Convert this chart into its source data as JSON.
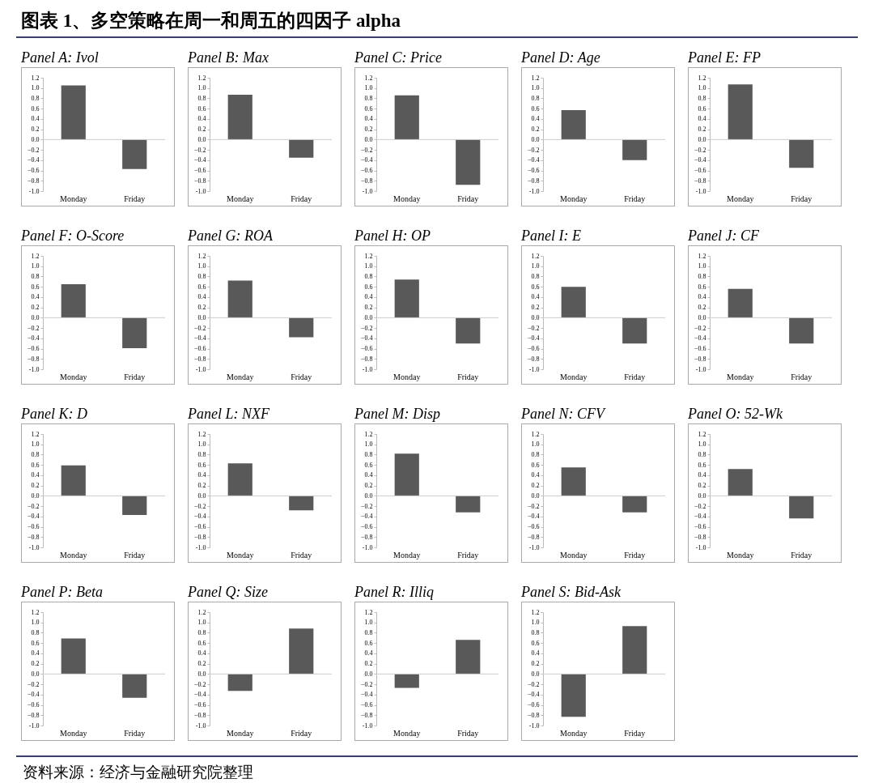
{
  "chart_data": [
    {
      "type": "other",
      "title": "图表 1、多空策略在周一和周五的四因子 alpha"
    },
    {
      "type": "bar",
      "title": "Panel A: Ivol",
      "categories": [
        "Monday",
        "Friday"
      ],
      "values": [
        1.05,
        -0.57
      ],
      "color": "#595959",
      "ylim": [
        -1,
        1.2
      ],
      "yticks": [
        1.2,
        {
          "value": 1,
          "label": "1.0"
        },
        0.8,
        0.6,
        0.4,
        0.2,
        {
          "value": 0,
          "label": "0.0"
        },
        -0.2,
        -0.4,
        -0.6,
        -0.8,
        {
          "value": -1,
          "label": "-1.0"
        }
      ]
    },
    {
      "type": "bar",
      "title": "Panel B: Max",
      "categories": [
        "Monday",
        "Friday"
      ],
      "values": [
        0.87,
        -0.35
      ],
      "color": "#595959",
      "ylim": [
        -1,
        1.2
      ],
      "yticks": [
        1.2,
        {
          "value": 1,
          "label": "1.0"
        },
        0.8,
        0.6,
        0.4,
        0.2,
        {
          "value": 0,
          "label": "0.0"
        },
        -0.2,
        -0.4,
        -0.6,
        -0.8,
        {
          "value": -1,
          "label": "-1.0"
        }
      ]
    },
    {
      "type": "bar",
      "title": "Panel C: Price",
      "categories": [
        "Monday",
        "Friday"
      ],
      "values": [
        0.86,
        -0.88
      ],
      "color": "#595959",
      "ylim": [
        -1,
        1.2
      ],
      "yticks": [
        1.2,
        {
          "value": 1,
          "label": "1.0"
        },
        0.8,
        0.6,
        0.4,
        0.2,
        {
          "value": 0,
          "label": "0.0"
        },
        -0.2,
        -0.4,
        -0.6,
        -0.8,
        {
          "value": -1,
          "label": "-1.0"
        }
      ]
    },
    {
      "type": "bar",
      "title": "Panel D: Age",
      "categories": [
        "Monday",
        "Friday"
      ],
      "values": [
        0.57,
        -0.4
      ],
      "color": "#595959",
      "ylim": [
        -1,
        1.2
      ],
      "yticks": [
        1.2,
        {
          "value": 1,
          "label": "1.0"
        },
        0.8,
        0.6,
        0.4,
        0.2,
        {
          "value": 0,
          "label": "0.0"
        },
        -0.2,
        -0.4,
        -0.6,
        -0.8,
        {
          "value": -1,
          "label": "-1.0"
        }
      ]
    },
    {
      "type": "bar",
      "title": "Panel E: FP",
      "categories": [
        "Monday",
        "Friday"
      ],
      "values": [
        1.07,
        -0.55
      ],
      "color": "#595959",
      "ylim": [
        -1,
        1.2
      ],
      "yticks": [
        1.2,
        {
          "value": 1,
          "label": "1.0"
        },
        0.8,
        0.6,
        0.4,
        0.2,
        {
          "value": 0,
          "label": "0.0"
        },
        -0.2,
        -0.4,
        -0.6,
        -0.8,
        {
          "value": -1,
          "label": "-1.0"
        }
      ]
    },
    {
      "type": "bar",
      "title": "Panel F: O-Score",
      "categories": [
        "Monday",
        "Friday"
      ],
      "values": [
        0.65,
        -0.59
      ],
      "color": "#595959",
      "ylim": [
        -1,
        1.2
      ],
      "yticks": [
        1.2,
        {
          "value": 1,
          "label": "1.0"
        },
        0.8,
        0.6,
        0.4,
        0.2,
        {
          "value": 0,
          "label": "0.0"
        },
        -0.2,
        -0.4,
        -0.6,
        -0.8,
        {
          "value": -1,
          "label": "-1.0"
        }
      ]
    },
    {
      "type": "bar",
      "title": "Panel G: ROA",
      "categories": [
        "Monday",
        "Friday"
      ],
      "values": [
        0.72,
        -0.38
      ],
      "color": "#595959",
      "ylim": [
        -1,
        1.2
      ],
      "yticks": [
        1.2,
        {
          "value": 1,
          "label": "1.0"
        },
        0.8,
        0.6,
        0.4,
        0.2,
        {
          "value": 0,
          "label": "0.0"
        },
        -0.2,
        -0.4,
        -0.6,
        -0.8,
        {
          "value": -1,
          "label": "-1.0"
        }
      ]
    },
    {
      "type": "bar",
      "title": "Panel H: OP",
      "categories": [
        "Monday",
        "Friday"
      ],
      "values": [
        0.74,
        -0.5
      ],
      "color": "#595959",
      "ylim": [
        -1,
        1.2
      ],
      "yticks": [
        1.2,
        {
          "value": 1,
          "label": "1.0"
        },
        0.8,
        0.6,
        0.4,
        0.2,
        {
          "value": 0,
          "label": "0.0"
        },
        -0.2,
        -0.4,
        -0.6,
        -0.8,
        {
          "value": -1,
          "label": "-1.0"
        }
      ]
    },
    {
      "type": "bar",
      "title": "Panel I: E",
      "categories": [
        "Monday",
        "Friday"
      ],
      "values": [
        0.6,
        -0.5
      ],
      "color": "#595959",
      "ylim": [
        -1,
        1.2
      ],
      "yticks": [
        1.2,
        {
          "value": 1,
          "label": "1.0"
        },
        0.8,
        0.6,
        0.4,
        0.2,
        {
          "value": 0,
          "label": "0.0"
        },
        -0.2,
        -0.4,
        -0.6,
        -0.8,
        {
          "value": -1,
          "label": "-1.0"
        }
      ]
    },
    {
      "type": "bar",
      "title": "Panel J: CF",
      "categories": [
        "Monday",
        "Friday"
      ],
      "values": [
        0.56,
        -0.5
      ],
      "color": "#595959",
      "ylim": [
        -1,
        1.2
      ],
      "yticks": [
        1.2,
        {
          "value": 1,
          "label": "1.0"
        },
        0.8,
        0.6,
        0.4,
        0.2,
        {
          "value": 0,
          "label": "0.0"
        },
        -0.2,
        -0.4,
        -0.6,
        -0.8,
        {
          "value": -1,
          "label": "-1.0"
        }
      ]
    },
    {
      "type": "bar",
      "title": "Panel K: D",
      "categories": [
        "Monday",
        "Friday"
      ],
      "values": [
        0.59,
        -0.37
      ],
      "color": "#595959",
      "ylim": [
        -1,
        1.2
      ],
      "yticks": [
        1.2,
        {
          "value": 1,
          "label": "1.0"
        },
        0.8,
        0.6,
        0.4,
        0.2,
        {
          "value": 0,
          "label": "0.0"
        },
        -0.2,
        -0.4,
        -0.6,
        -0.8,
        {
          "value": -1,
          "label": "-1.0"
        }
      ]
    },
    {
      "type": "bar",
      "title": "Panel L: NXF",
      "categories": [
        "Monday",
        "Friday"
      ],
      "values": [
        0.63,
        -0.28
      ],
      "color": "#595959",
      "ylim": [
        -1,
        1.2
      ],
      "yticks": [
        1.2,
        {
          "value": 1,
          "label": "1.0"
        },
        0.8,
        0.6,
        0.4,
        0.2,
        {
          "value": 0,
          "label": "0.0"
        },
        -0.2,
        -0.4,
        -0.6,
        -0.8,
        {
          "value": -1,
          "label": "-1.0"
        }
      ]
    },
    {
      "type": "bar",
      "title": "Panel M: Disp",
      "categories": [
        "Monday",
        "Friday"
      ],
      "values": [
        0.82,
        -0.32
      ],
      "color": "#595959",
      "ylim": [
        -1,
        1.2
      ],
      "yticks": [
        1.2,
        {
          "value": 1,
          "label": "1.0"
        },
        0.8,
        0.6,
        0.4,
        0.2,
        {
          "value": 0,
          "label": "0.0"
        },
        -0.2,
        -0.4,
        -0.6,
        -0.8,
        {
          "value": -1,
          "label": "-1.0"
        }
      ]
    },
    {
      "type": "bar",
      "title": "Panel N: CFV",
      "categories": [
        "Monday",
        "Friday"
      ],
      "values": [
        0.55,
        -0.32
      ],
      "color": "#595959",
      "ylim": [
        -1,
        1.2
      ],
      "yticks": [
        1.2,
        {
          "value": 1,
          "label": "1.0"
        },
        0.8,
        0.6,
        0.4,
        0.2,
        {
          "value": 0,
          "label": "0.0"
        },
        -0.2,
        -0.4,
        -0.6,
        -0.8,
        {
          "value": -1,
          "label": "-1.0"
        }
      ]
    },
    {
      "type": "bar",
      "title": "Panel O: 52-Wk",
      "categories": [
        "Monday",
        "Friday"
      ],
      "values": [
        0.52,
        -0.44
      ],
      "color": "#595959",
      "ylim": [
        -1,
        1.2
      ],
      "yticks": [
        1.2,
        {
          "value": 1,
          "label": "1.0"
        },
        0.8,
        0.6,
        0.4,
        0.2,
        {
          "value": 0,
          "label": "0.0"
        },
        -0.2,
        -0.4,
        -0.6,
        -0.8,
        {
          "value": -1,
          "label": "-1.0"
        }
      ]
    },
    {
      "type": "bar",
      "title": "Panel P: Beta",
      "categories": [
        "Monday",
        "Friday"
      ],
      "values": [
        0.69,
        -0.46
      ],
      "color": "#595959",
      "ylim": [
        -1,
        1.2
      ],
      "yticks": [
        1.2,
        {
          "value": 1,
          "label": "1.0"
        },
        0.8,
        0.6,
        0.4,
        0.2,
        {
          "value": 0,
          "label": "0.0"
        },
        -0.2,
        -0.4,
        -0.6,
        -0.8,
        {
          "value": -1,
          "label": "-1.0"
        }
      ]
    },
    {
      "type": "bar",
      "title": "Panel Q: Size",
      "categories": [
        "Monday",
        "Friday"
      ],
      "values": [
        -0.33,
        0.88
      ],
      "color": "#595959",
      "ylim": [
        -1,
        1.2
      ],
      "yticks": [
        1.2,
        {
          "value": 1,
          "label": "1.0"
        },
        0.8,
        0.6,
        0.4,
        0.2,
        {
          "value": 0,
          "label": "0.0"
        },
        -0.2,
        -0.4,
        -0.6,
        -0.8,
        {
          "value": -1,
          "label": "-1.0"
        }
      ]
    },
    {
      "type": "bar",
      "title": "Panel R: Illiq",
      "categories": [
        "Monday",
        "Friday"
      ],
      "values": [
        -0.27,
        0.66
      ],
      "color": "#595959",
      "ylim": [
        -1,
        1.2
      ],
      "yticks": [
        1.2,
        {
          "value": 1,
          "label": "1.0"
        },
        0.8,
        0.6,
        0.4,
        0.2,
        {
          "value": 0,
          "label": "0.0"
        },
        -0.2,
        -0.4,
        -0.6,
        -0.8,
        {
          "value": -1,
          "label": "-1.0"
        }
      ]
    },
    {
      "type": "bar",
      "title": "Panel S: Bid-Ask",
      "categories": [
        "Monday",
        "Friday"
      ],
      "values": [
        -0.83,
        0.93
      ],
      "color": "#595959",
      "ylim": [
        -1,
        1.2
      ],
      "yticks": [
        1.2,
        {
          "value": 1,
          "label": "1.0"
        },
        0.8,
        0.6,
        0.4,
        0.2,
        {
          "value": 0,
          "label": "0.0"
        },
        -0.2,
        -0.4,
        -0.6,
        -0.8,
        {
          "value": -1,
          "label": "-1.0"
        }
      ]
    },
    {
      "type": "other",
      "annotations": [
        "资料来源：经济与金融研究院整理"
      ]
    }
  ]
}
